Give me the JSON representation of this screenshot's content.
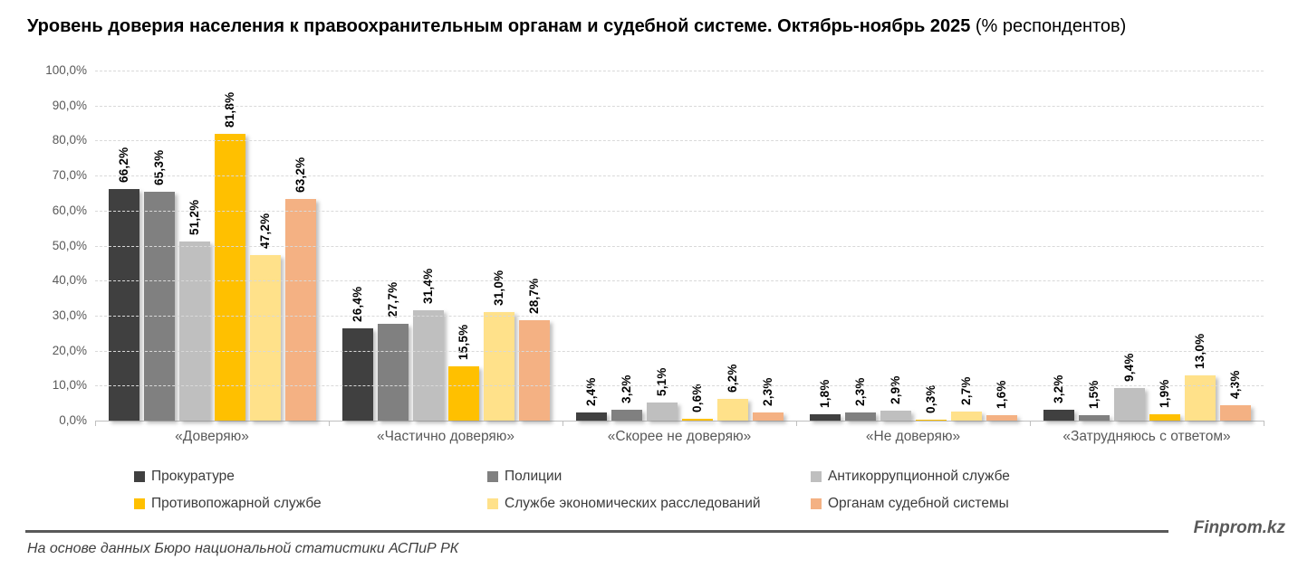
{
  "title": {
    "main": "Уровень доверия населения к правоохранительным органам и судебной системе. Октябрь-ноябрь 2025",
    "suffix": " (% респондентов)"
  },
  "chart_data": {
    "type": "bar",
    "categories": [
      "«Доверяю»",
      "«Частично доверяю»",
      "«Скорее не доверяю»",
      "«Не доверяю»",
      "«Затрудняюсь с ответом»"
    ],
    "series": [
      {
        "name": "Прокуратуре",
        "color": "#404040",
        "values": [
          66.2,
          26.4,
          2.4,
          1.8,
          3.2
        ]
      },
      {
        "name": "Полиции",
        "color": "#808080",
        "values": [
          65.3,
          27.7,
          3.2,
          2.3,
          1.5
        ]
      },
      {
        "name": "Антикоррупционной службе",
        "color": "#bfbfbf",
        "values": [
          51.2,
          31.4,
          5.1,
          2.9,
          9.4
        ]
      },
      {
        "name": "Противопожарной службе",
        "color": "#ffc000",
        "values": [
          81.8,
          15.5,
          0.6,
          0.3,
          1.9
        ]
      },
      {
        "name": "Службе экономических расследований",
        "color": "#ffe18a",
        "values": [
          47.2,
          31.0,
          6.2,
          2.7,
          13.0
        ]
      },
      {
        "name": "Органам судебной системы",
        "color": "#f4b183",
        "values": [
          63.2,
          28.7,
          2.3,
          1.6,
          4.3
        ]
      }
    ],
    "title": "Уровень доверия населения к правоохранительным органам и судебной системе. Октябрь-ноябрь 2025 (% респондентов)",
    "xlabel": "",
    "ylabel": "",
    "ylim": [
      0,
      100
    ],
    "ytick_step": 10,
    "ytick_labels": [
      "0,0%",
      "10,0%",
      "20,0%",
      "30,0%",
      "40,0%",
      "50,0%",
      "60,0%",
      "70,0%",
      "80,0%",
      "90,0%",
      "100,0%"
    ],
    "grid": "horizontal-dashed",
    "legend_position": "bottom",
    "value_label_rotation": -90,
    "value_label_format": "comma-decimal-percent"
  },
  "footer": {
    "brand": "Finprom.kz",
    "note": "На основе данных Бюро национальной статистики АСПиР РК"
  }
}
